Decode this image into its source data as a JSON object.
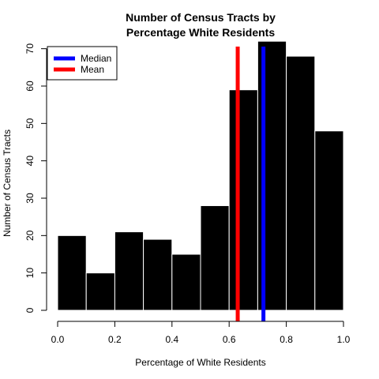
{
  "chart_data": {
    "type": "bar",
    "title_line1": "Number of Census Tracts by",
    "title_line2": "Percentage White Residents",
    "xlabel": "Percentage of White Residents",
    "ylabel": "Number of Census Tracts",
    "xlim": [
      0,
      1
    ],
    "ylim": [
      0,
      75
    ],
    "x_ticks": [
      "0.0",
      "0.2",
      "0.4",
      "0.6",
      "0.8",
      "1.0"
    ],
    "y_ticks": [
      "0",
      "10",
      "20",
      "30",
      "40",
      "50",
      "60",
      "70"
    ],
    "bins": [
      {
        "x0": 0.0,
        "x1": 0.1,
        "count": 20
      },
      {
        "x0": 0.1,
        "x1": 0.2,
        "count": 10
      },
      {
        "x0": 0.2,
        "x1": 0.3,
        "count": 21
      },
      {
        "x0": 0.3,
        "x1": 0.4,
        "count": 19
      },
      {
        "x0": 0.4,
        "x1": 0.5,
        "count": 15
      },
      {
        "x0": 0.5,
        "x1": 0.6,
        "count": 28
      },
      {
        "x0": 0.6,
        "x1": 0.7,
        "count": 59
      },
      {
        "x0": 0.7,
        "x1": 0.8,
        "count": 72
      },
      {
        "x0": 0.8,
        "x1": 0.9,
        "count": 68
      },
      {
        "x0": 0.9,
        "x1": 1.0,
        "count": 48
      }
    ],
    "bar_color": "#000000",
    "vlines": [
      {
        "name": "Median",
        "x": 0.72,
        "color": "#0000ff"
      },
      {
        "name": "Mean",
        "x": 0.63,
        "color": "#ff0000"
      }
    ],
    "legend": {
      "position": "top-left",
      "entries": [
        {
          "label": "Median",
          "color": "#0000ff"
        },
        {
          "label": "Mean",
          "color": "#ff0000"
        }
      ]
    }
  }
}
